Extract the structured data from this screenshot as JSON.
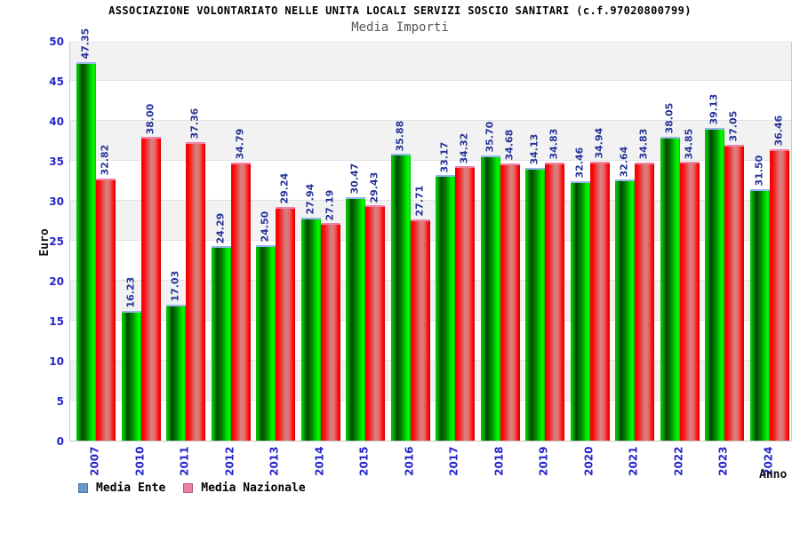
{
  "header": {
    "title": "ASSOCIAZIONE VOLONTARIATO NELLE UNITA LOCALI SERVIZI SOSCIO SANITARI (c.f.97020800799)",
    "subtitle": "Media Importi"
  },
  "chart_data": {
    "type": "bar",
    "title": "ASSOCIAZIONE VOLONTARIATO NELLE UNITA LOCALI SERVIZI SOSCIO SANITARI (c.f.97020800799)",
    "subtitle": "Media Importi",
    "xlabel": "Anno",
    "ylabel": "Euro",
    "ylim": [
      0,
      50
    ],
    "ytick_step": 5,
    "grid": "alternating-horizontal-bands",
    "legend_position": "bottom-left",
    "categories": [
      "2007",
      "2010",
      "2011",
      "2012",
      "2013",
      "2014",
      "2015",
      "2016",
      "2017",
      "2018",
      "2019",
      "2020",
      "2021",
      "2022",
      "2023",
      "2024"
    ],
    "series": [
      {
        "name": "Media Ente",
        "legend_color": "#6699cc",
        "bar_color": "green",
        "values": [
          47.35,
          16.23,
          17.03,
          24.29,
          24.5,
          27.94,
          30.47,
          35.88,
          33.17,
          35.7,
          34.13,
          32.46,
          32.64,
          38.05,
          39.13,
          31.5
        ]
      },
      {
        "name": "Media Nazionale",
        "legend_color": "#ed7fa5",
        "bar_color": "red",
        "values": [
          32.82,
          38.0,
          37.36,
          34.79,
          29.24,
          27.19,
          29.43,
          27.71,
          34.32,
          34.68,
          34.83,
          34.94,
          34.83,
          34.85,
          37.05,
          36.46
        ]
      }
    ],
    "colors": {
      "tick_label": "#2424cc",
      "value_label": "#263499",
      "band_gray": "#f2f2f2",
      "green_bar_cap": "#93b9e6",
      "red_bar_cap": "#ee85ab"
    }
  }
}
